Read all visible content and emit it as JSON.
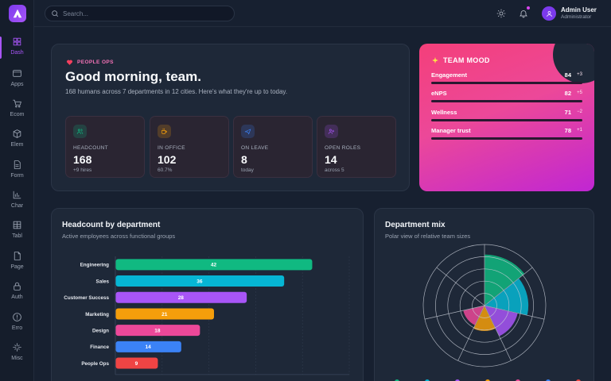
{
  "sidebar": {
    "items": [
      {
        "label": "Dash",
        "icon": "dashboard-icon",
        "active": true
      },
      {
        "label": "Apps",
        "icon": "window-icon"
      },
      {
        "label": "Ecom",
        "icon": "cart-icon"
      },
      {
        "label": "Elem",
        "icon": "cube-icon"
      },
      {
        "label": "Form",
        "icon": "form-icon"
      },
      {
        "label": "Char",
        "icon": "bar-chart-icon"
      },
      {
        "label": "Tabl",
        "icon": "table-icon"
      },
      {
        "label": "Page",
        "icon": "page-icon"
      },
      {
        "label": "Auth",
        "icon": "lock-icon"
      },
      {
        "label": "Erro",
        "icon": "alert-icon"
      },
      {
        "label": "Misc",
        "icon": "sparkle-icon"
      }
    ]
  },
  "topbar": {
    "search_placeholder": "Search...",
    "user_name": "Admin User",
    "user_role": "Administrator"
  },
  "welcome": {
    "eyebrow": "PEOPLE OPS",
    "greeting": "Good morning, team.",
    "subtitle": "168 humans across 7 departments in 12 cities. Here's what they're up to today.",
    "stats": [
      {
        "label": "HEADCOUNT",
        "value": "168",
        "sub": "+9 hires",
        "icon": "users-icon",
        "color": "#10b981"
      },
      {
        "label": "IN OFFICE",
        "value": "102",
        "sub": "60.7%",
        "icon": "coffee-icon",
        "color": "#f59e0b"
      },
      {
        "label": "ON LEAVE",
        "value": "8",
        "sub": "today",
        "icon": "plane-icon",
        "color": "#3b82f6"
      },
      {
        "label": "OPEN ROLES",
        "value": "14",
        "sub": "across 5",
        "icon": "user-plus-icon",
        "color": "#a855f7"
      }
    ]
  },
  "mood": {
    "title": "TEAM MOOD",
    "metrics": [
      {
        "name": "Engagement",
        "value": "84",
        "delta": "+3",
        "fraction": 0.84
      },
      {
        "name": "eNPS",
        "value": "82",
        "delta": "+5",
        "fraction": 0.82
      },
      {
        "name": "Wellness",
        "value": "71",
        "delta": "−2",
        "fraction": 0.71
      },
      {
        "name": "Manager trust",
        "value": "78",
        "delta": "+1",
        "fraction": 0.78
      }
    ]
  },
  "headcount": {
    "title": "Headcount by department",
    "subtitle": "Active employees across functional groups"
  },
  "mix": {
    "title": "Department mix",
    "subtitle": "Polar view of relative team sizes"
  },
  "chart_data": [
    {
      "type": "bar",
      "orientation": "horizontal",
      "title": "Headcount by department",
      "categories": [
        "Engineering",
        "Sales",
        "Customer Success",
        "Marketing",
        "Design",
        "Finance",
        "People Ops"
      ],
      "values": [
        42,
        36,
        28,
        21,
        18,
        14,
        9
      ],
      "colors": [
        "#10b981",
        "#06b6d4",
        "#a855f7",
        "#f59e0b",
        "#ec4899",
        "#3b82f6",
        "#ef4444"
      ],
      "xlim": [
        0,
        50
      ],
      "xticks": [
        0,
        10,
        20,
        30,
        40,
        50
      ],
      "grid": true
    },
    {
      "type": "polar-area",
      "title": "Department mix",
      "categories": [
        "Engineering",
        "Sales",
        "Customer Success",
        "Marketing",
        "Design",
        "Finance",
        "People Ops"
      ],
      "values": [
        42,
        36,
        28,
        21,
        18,
        14,
        9
      ],
      "colors": [
        "#10b981",
        "#06b6d4",
        "#a855f7",
        "#f59e0b",
        "#ec4899",
        "#3b82f6",
        "#ef4444"
      ],
      "rmax": 50,
      "rings": 5,
      "visible_segments": 5
    }
  ]
}
